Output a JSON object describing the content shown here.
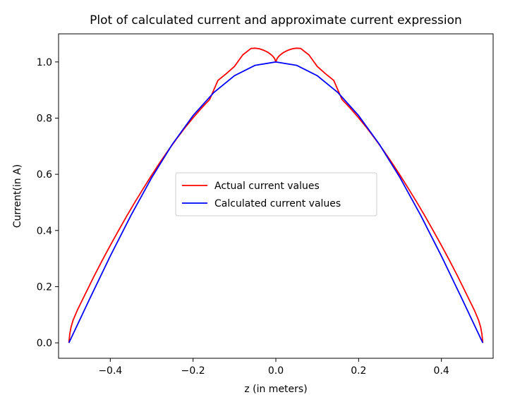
{
  "chart_data": {
    "type": "line",
    "title": "Plot of calculated current and approximate current expression",
    "xlabel": "z (in meters)",
    "ylabel": "Current(in A)",
    "xlim": [
      -0.525,
      0.525
    ],
    "ylim": [
      -0.055,
      1.1
    ],
    "xticks": [
      -0.4,
      -0.2,
      0.0,
      0.2,
      0.4
    ],
    "xtick_labels": [
      "−0.4",
      "−0.2",
      "0.0",
      "0.2",
      "0.4"
    ],
    "yticks": [
      0.0,
      0.2,
      0.4,
      0.6,
      0.8,
      1.0
    ],
    "ytick_labels": [
      "0.0",
      "0.2",
      "0.4",
      "0.6",
      "0.8",
      "1.0"
    ],
    "grid": false,
    "legend_position": "center",
    "series": [
      {
        "name": "Actual current values",
        "color": "#ff0000",
        "x": [
          -0.5,
          -0.498,
          -0.495,
          -0.49,
          -0.48,
          -0.46,
          -0.44,
          -0.42,
          -0.4,
          -0.38,
          -0.36,
          -0.34,
          -0.32,
          -0.3,
          -0.28,
          -0.26,
          -0.24,
          -0.22,
          -0.2,
          -0.18,
          -0.16,
          -0.14,
          -0.12,
          -0.1,
          -0.08,
          -0.06,
          -0.05,
          -0.04,
          -0.03,
          -0.02,
          -0.015,
          -0.01,
          -0.006,
          -0.003,
          0.0,
          0.003,
          0.006,
          0.01,
          0.015,
          0.02,
          0.03,
          0.04,
          0.05,
          0.06,
          0.08,
          0.1,
          0.12,
          0.14,
          0.16,
          0.18,
          0.2,
          0.22,
          0.24,
          0.26,
          0.28,
          0.3,
          0.32,
          0.34,
          0.36,
          0.38,
          0.4,
          0.42,
          0.44,
          0.46,
          0.48,
          0.49,
          0.495,
          0.498,
          0.5
        ],
        "y": [
          0.0,
          0.03,
          0.055,
          0.08,
          0.115,
          0.175,
          0.235,
          0.292,
          0.347,
          0.4,
          0.452,
          0.502,
          0.55,
          0.597,
          0.642,
          0.685,
          0.726,
          0.765,
          0.801,
          0.835,
          0.866,
          0.934,
          0.958,
          0.984,
          1.025,
          1.048,
          1.049,
          1.047,
          1.042,
          1.035,
          1.03,
          1.024,
          1.018,
          1.012,
          1.0,
          1.012,
          1.018,
          1.024,
          1.03,
          1.035,
          1.042,
          1.047,
          1.049,
          1.048,
          1.025,
          0.984,
          0.958,
          0.934,
          0.866,
          0.835,
          0.801,
          0.765,
          0.726,
          0.685,
          0.642,
          0.597,
          0.55,
          0.502,
          0.452,
          0.4,
          0.347,
          0.292,
          0.235,
          0.175,
          0.115,
          0.08,
          0.055,
          0.03,
          0.0
        ]
      },
      {
        "name": "Calculated current values",
        "color": "#0000ff",
        "x": [
          -0.5,
          -0.45,
          -0.4,
          -0.35,
          -0.3,
          -0.25,
          -0.2,
          -0.15,
          -0.1,
          -0.05,
          0.0,
          0.05,
          0.1,
          0.15,
          0.2,
          0.25,
          0.3,
          0.35,
          0.4,
          0.45,
          0.5
        ],
        "y": [
          0.0,
          0.156,
          0.309,
          0.454,
          0.588,
          0.707,
          0.809,
          0.891,
          0.951,
          0.988,
          1.0,
          0.988,
          0.951,
          0.891,
          0.809,
          0.707,
          0.588,
          0.454,
          0.309,
          0.156,
          0.0
        ]
      }
    ]
  }
}
